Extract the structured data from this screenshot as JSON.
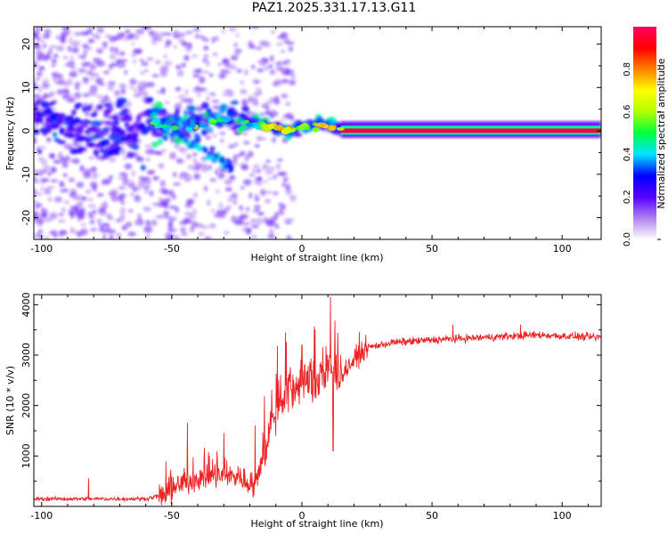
{
  "title": "PAZ1.2025.331.17.13.G11",
  "chart_data": [
    {
      "type": "heatmap",
      "name": "spectrogram",
      "xlabel": "Height of straight line (km)",
      "ylabel": "Frequency (Hz)",
      "xlim": [
        -103,
        115
      ],
      "ylim": [
        -25,
        24
      ],
      "xticks": [
        -100,
        -50,
        0,
        50,
        100
      ],
      "yticks": [
        -20,
        -10,
        0,
        10,
        20
      ],
      "colorbar": {
        "label": "Normalized spectral amplitude",
        "range": [
          0,
          1
        ],
        "ticks": [
          0.0,
          0.2,
          0.4,
          0.6,
          0.8
        ],
        "colors": [
          "#ffffff",
          "#b080f0",
          "#5500ff",
          "#0000ff",
          "#00e5ff",
          "#00ff40",
          "#b0ff00",
          "#ffff00",
          "#ff8000",
          "#ff0000",
          "#ff0060"
        ]
      },
      "description_points": [
        {
          "x": -90,
          "y": 2,
          "v": 0.12
        },
        {
          "x": -80,
          "y": -2,
          "v": 0.15
        },
        {
          "x": -55,
          "y": 1,
          "v": 0.3
        },
        {
          "x": -40,
          "y": 3,
          "v": 0.35
        },
        {
          "x": -25,
          "y": 3,
          "v": 0.4
        },
        {
          "x": -10,
          "y": 0.5,
          "v": 0.55
        },
        {
          "x": 0,
          "y": 0,
          "v": 0.7
        },
        {
          "x": 10,
          "y": 2,
          "v": 0.4
        },
        {
          "x": 20,
          "y": 0,
          "v": 0.95
        },
        {
          "x": 50,
          "y": 0,
          "v": 0.95
        },
        {
          "x": 100,
          "y": 0,
          "v": 0.95
        }
      ]
    },
    {
      "type": "line",
      "name": "snr",
      "xlabel": "Height of straight line (km)",
      "ylabel": "SNR (10 * v/v)",
      "xlim": [
        -103,
        115
      ],
      "ylim": [
        0,
        4200
      ],
      "xticks": [
        -100,
        -50,
        0,
        50,
        100
      ],
      "yticks": [
        1000,
        2000,
        3000,
        4000
      ],
      "color": "#ee2222",
      "trend": [
        [
          -103,
          150
        ],
        [
          -60,
          150
        ],
        [
          -52,
          250
        ],
        [
          -45,
          500
        ],
        [
          -35,
          600
        ],
        [
          -25,
          600
        ],
        [
          -18,
          400
        ],
        [
          -15,
          1000
        ],
        [
          -10,
          1900
        ],
        [
          -5,
          2300
        ],
        [
          0,
          2400
        ],
        [
          5,
          2500
        ],
        [
          10,
          2700
        ],
        [
          15,
          2600
        ],
        [
          20,
          2900
        ],
        [
          25,
          3150
        ],
        [
          35,
          3250
        ],
        [
          50,
          3300
        ],
        [
          70,
          3350
        ],
        [
          90,
          3400
        ],
        [
          115,
          3350
        ]
      ],
      "spikes": [
        {
          "x": -82,
          "y": 550
        },
        {
          "x": -44,
          "y": 1650
        },
        {
          "x": -30,
          "y": 1450
        },
        {
          "x": -18,
          "y": 1600
        },
        {
          "x": -6,
          "y": 3250
        },
        {
          "x": 0,
          "y": 3200
        },
        {
          "x": 5,
          "y": 3500
        },
        {
          "x": 8,
          "y": 3150
        },
        {
          "x": 11,
          "y": 4150
        },
        {
          "x": 12,
          "y": 1100
        },
        {
          "x": 22,
          "y": 3450
        },
        {
          "x": 58,
          "y": 3600
        },
        {
          "x": 84,
          "y": 3600
        }
      ]
    }
  ]
}
